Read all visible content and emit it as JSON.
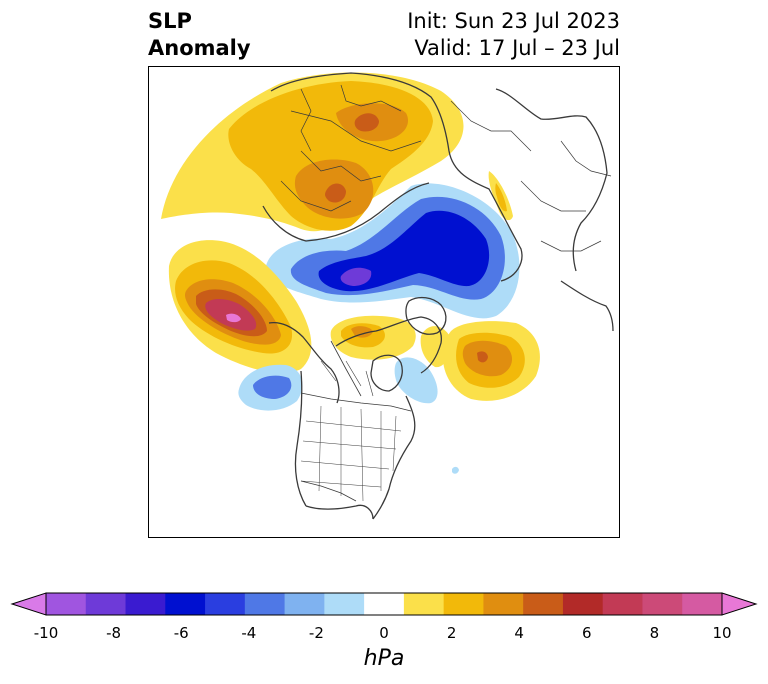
{
  "title": {
    "left_line1": "SLP",
    "left_line2": "Anomaly",
    "right_line1": "Init: Sun 23 Jul 2023",
    "right_line2": "Valid: 17 Jul – 23 Jul"
  },
  "colorbar": {
    "unit": "hPa",
    "ticks": [
      "-10",
      "-8",
      "-6",
      "-4",
      "-2",
      "0",
      "2",
      "4",
      "6",
      "8",
      "10"
    ],
    "colors": [
      "#d97ae8",
      "#a055e0",
      "#6e3ad8",
      "#3a1bd0",
      "#0010d0",
      "#2a3ee0",
      "#4f78e6",
      "#7fb2f0",
      "#aedcf8",
      "#ffffff",
      "#fbe04a",
      "#f2b90a",
      "#e08e10",
      "#c95c18",
      "#b22a28",
      "#c23a55",
      "#cc4a78",
      "#d55aa2",
      "#e878d6"
    ],
    "extend": "both"
  },
  "map": {
    "projection": "polar-stereographic",
    "features": [
      "coastlines",
      "country-borders",
      "state-borders"
    ],
    "colors": {
      "land_line": "#3a3a3a",
      "neg_light": "#aedcf8",
      "neg_mid": "#4f78e6",
      "neg_dark": "#0010d0",
      "neg_core": "#6e3ad8",
      "pos_light": "#fbe04a",
      "pos_mid": "#f2b90a",
      "pos_orange": "#e08e10",
      "pos_red": "#c95c18",
      "pos_dark": "#c23a55",
      "pos_core": "#e878d6"
    }
  }
}
